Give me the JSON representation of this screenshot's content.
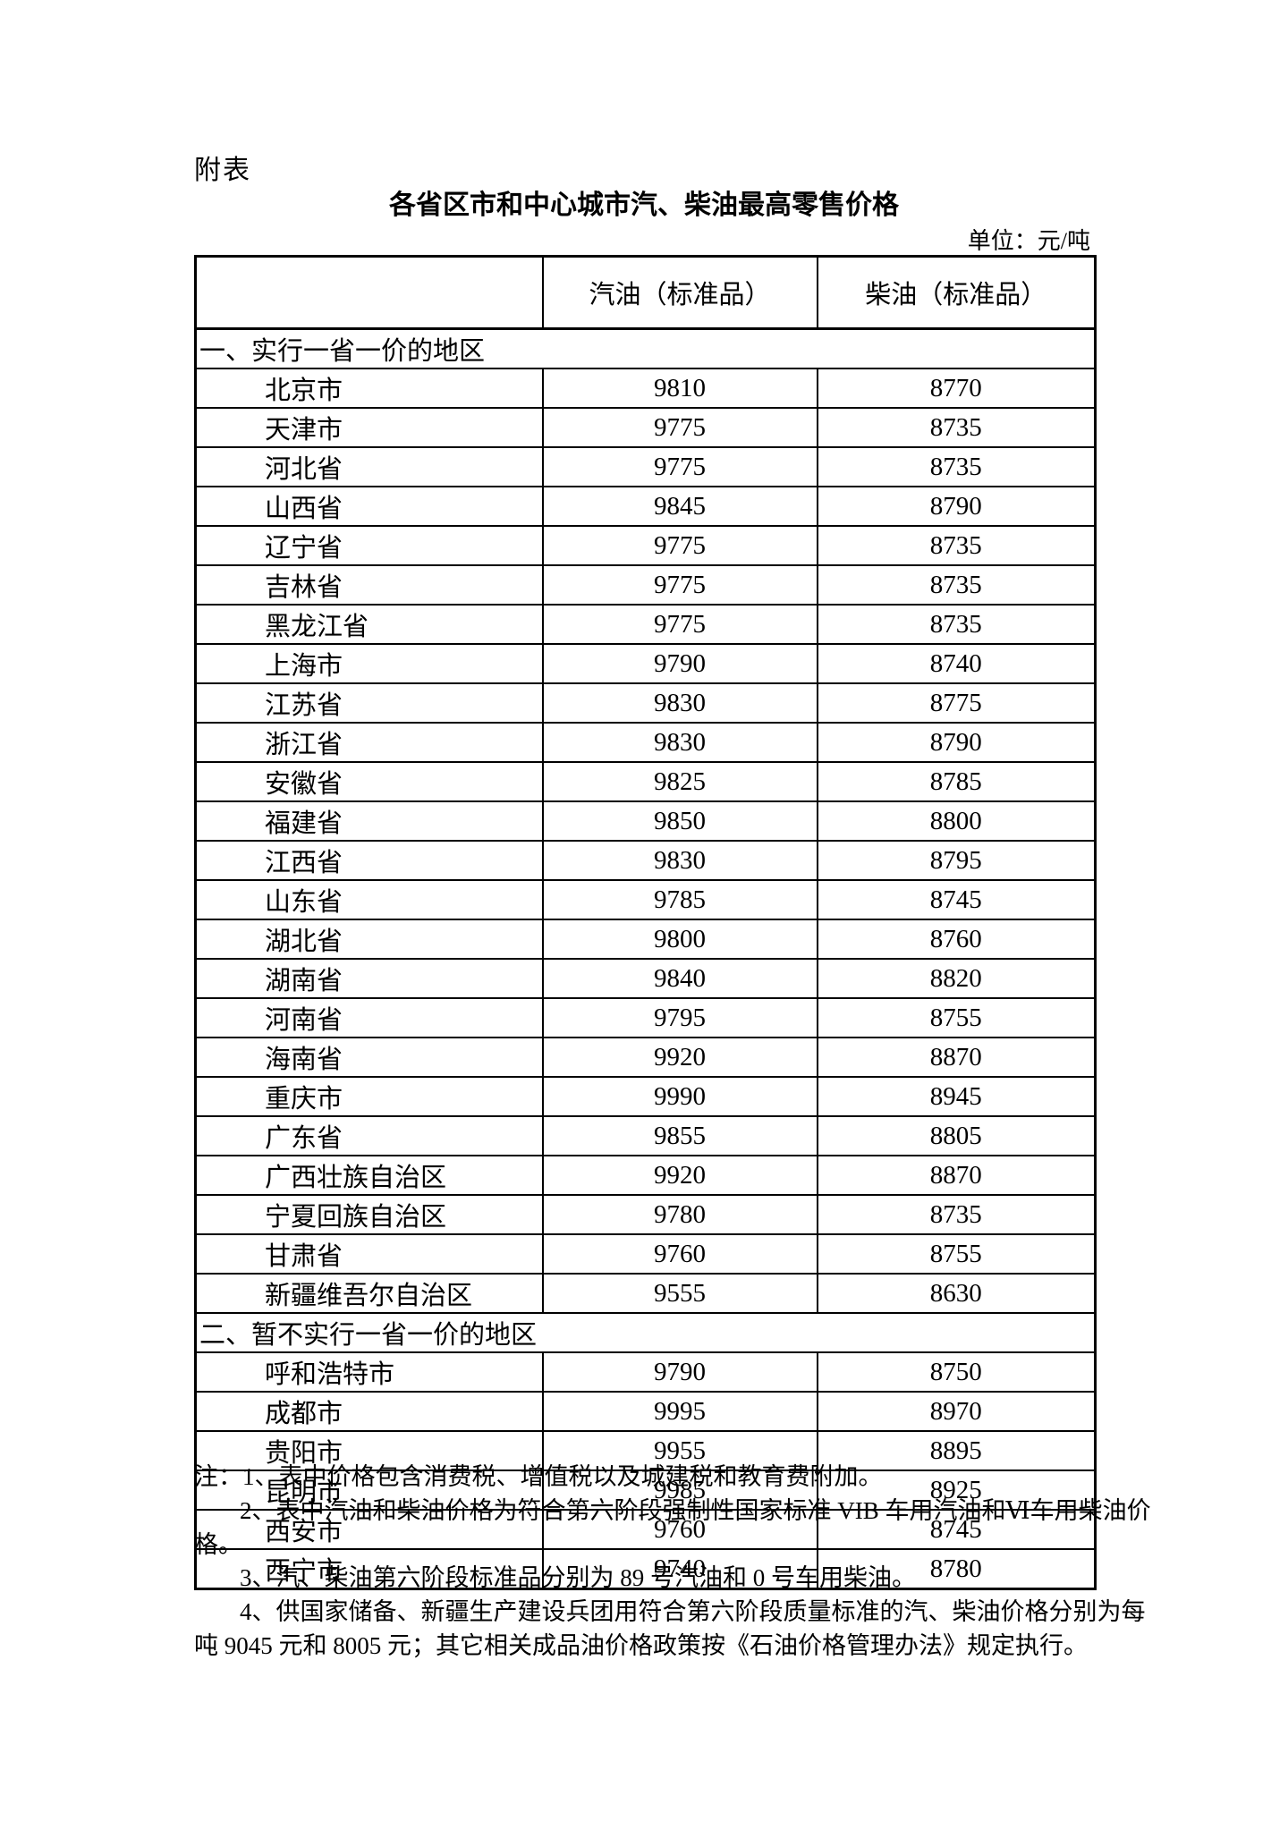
{
  "page": {
    "label": "附表",
    "title": "各省区市和中心城市汽、柴油最高零售价格",
    "unit": "单位：元/吨"
  },
  "table": {
    "columns": [
      "",
      "汽油（标准品）",
      "柴油（标准品）"
    ],
    "sections": [
      {
        "heading": "一、实行一省一价的地区",
        "rows": [
          [
            "北京市",
            "9810",
            "8770"
          ],
          [
            "天津市",
            "9775",
            "8735"
          ],
          [
            "河北省",
            "9775",
            "8735"
          ],
          [
            "山西省",
            "9845",
            "8790"
          ],
          [
            "辽宁省",
            "9775",
            "8735"
          ],
          [
            "吉林省",
            "9775",
            "8735"
          ],
          [
            "黑龙江省",
            "9775",
            "8735"
          ],
          [
            "上海市",
            "9790",
            "8740"
          ],
          [
            "江苏省",
            "9830",
            "8775"
          ],
          [
            "浙江省",
            "9830",
            "8790"
          ],
          [
            "安徽省",
            "9825",
            "8785"
          ],
          [
            "福建省",
            "9850",
            "8800"
          ],
          [
            "江西省",
            "9830",
            "8795"
          ],
          [
            "山东省",
            "9785",
            "8745"
          ],
          [
            "湖北省",
            "9800",
            "8760"
          ],
          [
            "湖南省",
            "9840",
            "8820"
          ],
          [
            "河南省",
            "9795",
            "8755"
          ],
          [
            "海南省",
            "9920",
            "8870"
          ],
          [
            "重庆市",
            "9990",
            "8945"
          ],
          [
            "广东省",
            "9855",
            "8805"
          ],
          [
            "广西壮族自治区",
            "9920",
            "8870"
          ],
          [
            "宁夏回族自治区",
            "9780",
            "8735"
          ],
          [
            "甘肃省",
            "9760",
            "8755"
          ],
          [
            "新疆维吾尔自治区",
            "9555",
            "8630"
          ]
        ]
      },
      {
        "heading": "二、暂不实行一省一价的地区",
        "rows": [
          [
            "呼和浩特市",
            "9790",
            "8750"
          ],
          [
            "成都市",
            "9995",
            "8970"
          ],
          [
            "贵阳市",
            "9955",
            "8895"
          ],
          [
            "昆明市",
            "9985",
            "8925"
          ],
          [
            "西安市",
            "9760",
            "8745"
          ],
          [
            "西宁市",
            "9740",
            "8780"
          ]
        ]
      }
    ]
  },
  "notes": [
    {
      "text": "注：1、表中价格包含消费税、增值税以及城建税和教育费附加。",
      "indent": false
    },
    {
      "text": "2、表中汽油和柴油价格为符合第六阶段强制性国家标准 VIB 车用汽油和Ⅵ车用柴油价",
      "indent": true
    },
    {
      "text": "格。",
      "indent": false
    },
    {
      "text": "3、汽、柴油第六阶段标准品分别为 89 号汽油和 0 号车用柴油。",
      "indent": true
    },
    {
      "text": "4、供国家储备、新疆生产建设兵团用符合第六阶段质量标准的汽、柴油价格分别为每",
      "indent": true
    },
    {
      "text": "吨 9045 元和 8005 元；其它相关成品油价格政策按《石油价格管理办法》规定执行。",
      "indent": false
    }
  ]
}
